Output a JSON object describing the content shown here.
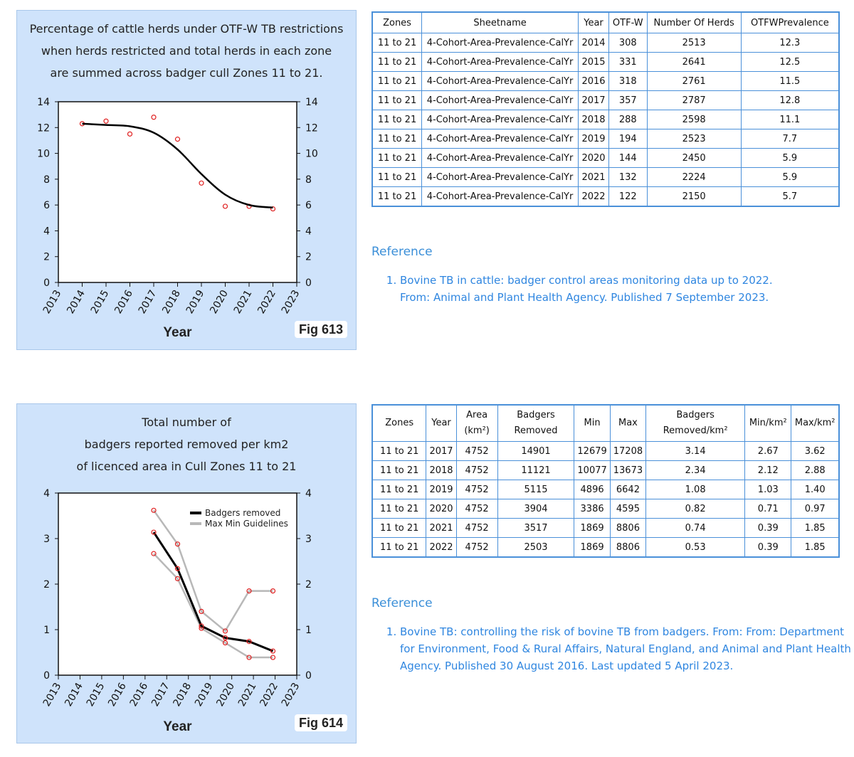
{
  "fig613": {
    "title_lines": [
      "Percentage of cattle herds under OTF-W TB restrictions",
      "when herds restricted and total herds in each zone",
      "are summed across badger cull Zones 11 to 21."
    ],
    "badge": "Fig 613"
  },
  "fig614": {
    "title_lines": [
      "Total number of",
      "badgers reported removed per km2",
      "of licenced area in Cull Zones 11 to 21"
    ],
    "badge": "Fig 614"
  },
  "chart_data": [
    {
      "type": "line",
      "title": "Percentage of cattle herds under OTF-W TB restrictions when herds restricted and total herds in each zone are summed across badger cull Zones 11 to 21.",
      "xlabel": "Year",
      "ylabel": "",
      "x_ticks": [
        "2013",
        "2014",
        "2015",
        "2016",
        "2017",
        "2018",
        "2019",
        "2020",
        "2021",
        "2022",
        "2023"
      ],
      "y_ticks": [
        "0",
        "2",
        "4",
        "6",
        "8",
        "10",
        "12",
        "14"
      ],
      "xlim": [
        2013,
        2023
      ],
      "ylim": [
        0,
        14
      ],
      "grid": false,
      "series": [
        {
          "name": "",
          "kind": "points",
          "color": "#e02020",
          "x": [
            2014,
            2015,
            2016,
            2017,
            2018,
            2019,
            2020,
            2021,
            2022
          ],
          "y": [
            12.3,
            12.5,
            11.5,
            12.8,
            11.1,
            7.7,
            5.9,
            5.9,
            5.7
          ]
        },
        {
          "name": "",
          "kind": "smooth",
          "color": "#000000",
          "x": [
            2014,
            2015,
            2016,
            2017,
            2018,
            2019,
            2020,
            2021,
            2022
          ],
          "y": [
            12.3,
            12.2,
            12.1,
            11.6,
            10.3,
            8.4,
            6.8,
            6.0,
            5.8
          ]
        }
      ]
    },
    {
      "type": "line",
      "title": "Total number of badgers reported removed per km2 of licenced area in Cull Zones 11 to 21",
      "xlabel": "Year",
      "ylabel": "",
      "x_ticks": [
        "2013",
        "2014",
        "2015",
        "2016",
        "2016",
        "2017",
        "2018",
        "2019",
        "2020",
        "2021",
        "2022",
        "2023"
      ],
      "y_ticks": [
        "0",
        "1",
        "2",
        "3",
        "4"
      ],
      "xlim": [
        2013,
        2023
      ],
      "ylim": [
        0,
        4
      ],
      "grid": false,
      "legend_position": "top-center",
      "series": [
        {
          "name": "Badgers removed",
          "color": "#000000",
          "x": [
            2017,
            2018,
            2019,
            2020,
            2021,
            2022
          ],
          "y": [
            3.14,
            2.34,
            1.08,
            0.82,
            0.74,
            0.53
          ]
        },
        {
          "name": "Max Min Guidelines",
          "color": "#b8b8b8",
          "role": "max",
          "x": [
            2017,
            2018,
            2019,
            2020,
            2021,
            2022
          ],
          "y": [
            3.62,
            2.88,
            1.4,
            0.97,
            1.85,
            1.85
          ]
        },
        {
          "name": "",
          "color": "#b8b8b8",
          "role": "min",
          "x": [
            2017,
            2018,
            2019,
            2020,
            2021,
            2022
          ],
          "y": [
            2.67,
            2.12,
            1.03,
            0.71,
            0.39,
            0.39
          ]
        }
      ]
    }
  ],
  "table1": {
    "headers": [
      "Zones",
      "Sheetname",
      "Year",
      "OTF-W",
      "Number Of Herds",
      "OTFWPrevalence"
    ],
    "rows": [
      [
        "11 to 21",
        "4-Cohort-Area-Prevalence-CalYr",
        "2014",
        "308",
        "2513",
        "12.3"
      ],
      [
        "11 to 21",
        "4-Cohort-Area-Prevalence-CalYr",
        "2015",
        "331",
        "2641",
        "12.5"
      ],
      [
        "11 to 21",
        "4-Cohort-Area-Prevalence-CalYr",
        "2016",
        "318",
        "2761",
        "11.5"
      ],
      [
        "11 to 21",
        "4-Cohort-Area-Prevalence-CalYr",
        "2017",
        "357",
        "2787",
        "12.8"
      ],
      [
        "11 to 21",
        "4-Cohort-Area-Prevalence-CalYr",
        "2018",
        "288",
        "2598",
        "11.1"
      ],
      [
        "11 to 21",
        "4-Cohort-Area-Prevalence-CalYr",
        "2019",
        "194",
        "2523",
        "7.7"
      ],
      [
        "11 to 21",
        "4-Cohort-Area-Prevalence-CalYr",
        "2020",
        "144",
        "2450",
        "5.9"
      ],
      [
        "11 to 21",
        "4-Cohort-Area-Prevalence-CalYr",
        "2021",
        "132",
        "2224",
        "5.9"
      ],
      [
        "11 to 21",
        "4-Cohort-Area-Prevalence-CalYr",
        "2022",
        "122",
        "2150",
        "5.7"
      ]
    ]
  },
  "reference1": {
    "heading": "Reference",
    "items": [
      "Bovine TB in cattle: badger control areas monitoring data up to 2022. From: Animal and Plant Health Agency. Published 7 September 2023."
    ]
  },
  "table2": {
    "headers": [
      "Zones",
      "Year",
      "Area (km²)",
      "Badgers Removed",
      "Min",
      "Max",
      "Badgers Removed/km²",
      "Min/km²",
      "Max/km²"
    ],
    "rows": [
      [
        "11 to 21",
        "2017",
        "4752",
        "14901",
        "12679",
        "17208",
        "3.14",
        "2.67",
        "3.62"
      ],
      [
        "11 to 21",
        "2018",
        "4752",
        "11121",
        "10077",
        "13673",
        "2.34",
        "2.12",
        "2.88"
      ],
      [
        "11 to 21",
        "2019",
        "4752",
        "5115",
        "4896",
        "6642",
        "1.08",
        "1.03",
        "1.40"
      ],
      [
        "11 to 21",
        "2020",
        "4752",
        "3904",
        "3386",
        "4595",
        "0.82",
        "0.71",
        "0.97"
      ],
      [
        "11 to 21",
        "2021",
        "4752",
        "3517",
        "1869",
        "8806",
        "0.74",
        "0.39",
        "1.85"
      ],
      [
        "11 to 21",
        "2022",
        "4752",
        "2503",
        "1869",
        "8806",
        "0.53",
        "0.39",
        "1.85"
      ]
    ]
  },
  "reference2": {
    "heading": "Reference",
    "items": [
      "Bovine TB: controlling the risk of bovine TB from badgers. From: From: Department for Environment, Food & Rural Affairs, Natural England, and Animal and Plant Health Agency. Published 30 August 2016. Last updated 5 April 2023."
    ]
  }
}
